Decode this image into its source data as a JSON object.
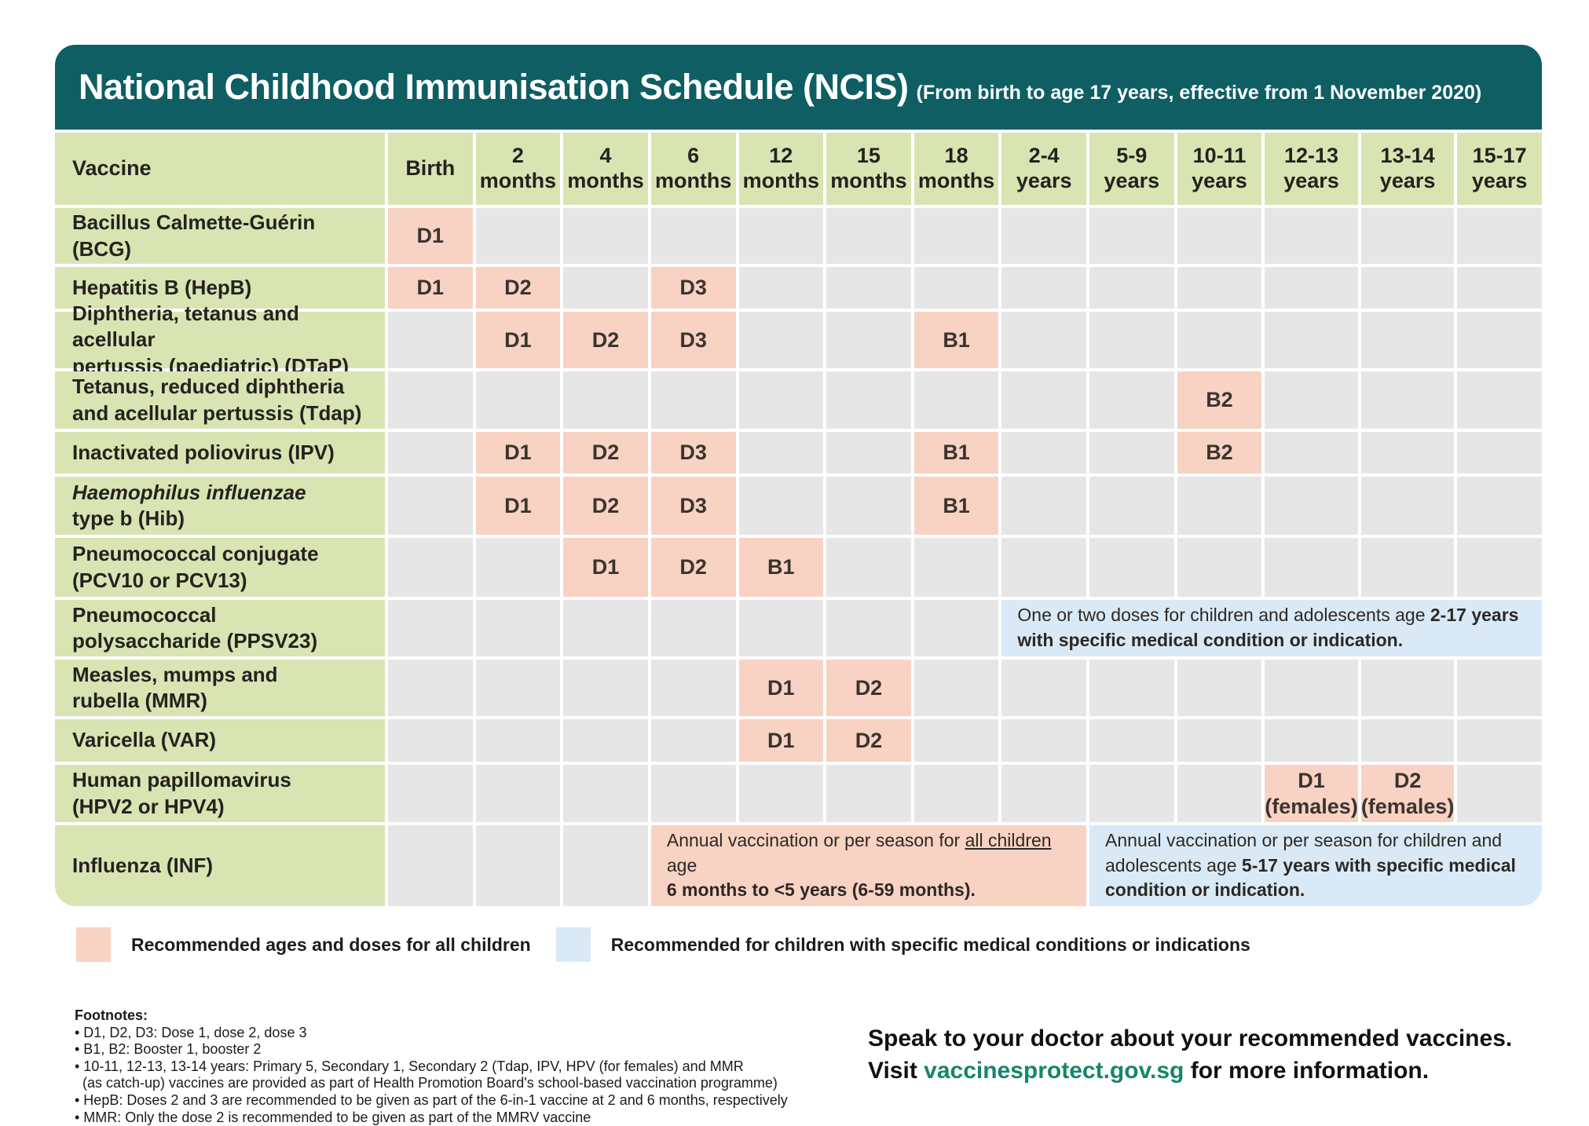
{
  "header": {
    "title": "National Childhood Immunisation Schedule (NCIS)",
    "subtitle": "(From birth to age 17 years, effective from 1 November 2020)"
  },
  "colors": {
    "teal": "#0e5e63",
    "green": "#d9e4b3",
    "pink": "#f8d2c3",
    "gray": "#e6e6e6",
    "blue": "#d9eaf6",
    "link": "#148769"
  },
  "table": {
    "columns": [
      "Vaccine",
      "Birth",
      "2\nmonths",
      "4\nmonths",
      "6\nmonths",
      "12\nmonths",
      "15\nmonths",
      "18\nmonths",
      "2-4\nyears",
      "5-9\nyears",
      "10-11\nyears",
      "12-13\nyears",
      "13-14\nyears",
      "15-17\nyears"
    ],
    "rows": [
      {
        "label": [
          {
            "t": "Bacillus Calmette-Guérin\n(BCG)"
          }
        ],
        "cells": [
          {
            "dose": "D1"
          },
          null,
          null,
          null,
          null,
          null,
          null,
          null,
          null,
          null,
          null,
          null,
          null
        ]
      },
      {
        "label": [
          {
            "t": "Hepatitis B (HepB)"
          }
        ],
        "cells": [
          {
            "dose": "D1"
          },
          {
            "dose": "D2"
          },
          null,
          {
            "dose": "D3"
          },
          null,
          null,
          null,
          null,
          null,
          null,
          null,
          null,
          null
        ]
      },
      {
        "label": [
          {
            "t": "Diphtheria, tetanus and acellular\npertussis (paediatric) (DTaP)"
          }
        ],
        "cells": [
          null,
          {
            "dose": "D1"
          },
          {
            "dose": "D2"
          },
          {
            "dose": "D3"
          },
          null,
          null,
          {
            "dose": "B1"
          },
          null,
          null,
          null,
          null,
          null,
          null
        ]
      },
      {
        "label": [
          {
            "t": "Tetanus, reduced diphtheria\nand acellular pertussis (Tdap)"
          }
        ],
        "cells": [
          null,
          null,
          null,
          null,
          null,
          null,
          null,
          null,
          null,
          {
            "dose": "B2"
          },
          null,
          null,
          null
        ]
      },
      {
        "label": [
          {
            "t": "Inactivated poliovirus (IPV)"
          }
        ],
        "cells": [
          null,
          {
            "dose": "D1"
          },
          {
            "dose": "D2"
          },
          {
            "dose": "D3"
          },
          null,
          null,
          {
            "dose": "B1"
          },
          null,
          null,
          {
            "dose": "B2"
          },
          null,
          null,
          null
        ]
      },
      {
        "label": [
          {
            "t": "Haemophilus influenzae",
            "i": 1
          },
          {
            "t": "\ntype b (Hib)"
          }
        ],
        "cells": [
          null,
          {
            "dose": "D1"
          },
          {
            "dose": "D2"
          },
          {
            "dose": "D3"
          },
          null,
          null,
          {
            "dose": "B1"
          },
          null,
          null,
          null,
          null,
          null,
          null
        ]
      },
      {
        "label": [
          {
            "t": "Pneumococcal conjugate\n(PCV10 or PCV13)"
          }
        ],
        "cells": [
          null,
          null,
          {
            "dose": "D1"
          },
          {
            "dose": "D2"
          },
          {
            "dose": "B1"
          },
          null,
          null,
          null,
          null,
          null,
          null,
          null,
          null
        ]
      },
      {
        "label": [
          {
            "t": "Pneumococcal\npolysaccharide (PPSV23)"
          }
        ],
        "cells": [
          null,
          null,
          null,
          null,
          null,
          null,
          null,
          {
            "style": "blue",
            "span": 6,
            "name": "ppsv23-note",
            "segments": [
              {
                "t": "One or two doses for children and adolescents age "
              },
              {
                "t": "2-17 years",
                "b": 1
              },
              {
                "t": "\n"
              },
              {
                "t": "with specific medical condition or indication.",
                "b": 1
              }
            ]
          }
        ]
      },
      {
        "label": [
          {
            "t": "Measles, mumps and\nrubella (MMR)"
          }
        ],
        "cells": [
          null,
          null,
          null,
          null,
          {
            "dose": "D1"
          },
          {
            "dose": "D2"
          },
          null,
          null,
          null,
          null,
          null,
          null,
          null
        ]
      },
      {
        "label": [
          {
            "t": "Varicella (VAR)"
          }
        ],
        "cells": [
          null,
          null,
          null,
          null,
          {
            "dose": "D1"
          },
          {
            "dose": "D2"
          },
          null,
          null,
          null,
          null,
          null,
          null,
          null
        ]
      },
      {
        "label": [
          {
            "t": "Human papillomavirus\n(HPV2 or HPV4)"
          }
        ],
        "cells": [
          null,
          null,
          null,
          null,
          null,
          null,
          null,
          null,
          null,
          null,
          {
            "dose": "D1\n(females)"
          },
          {
            "dose": "D2\n(females)"
          },
          null
        ]
      },
      {
        "label": [
          {
            "t": "Influenza (INF)"
          }
        ],
        "cells": [
          null,
          null,
          null,
          {
            "style": "pink",
            "span": 5,
            "name": "influenza-all-children-note",
            "segments": [
              {
                "t": "Annual vaccination or per season for "
              },
              {
                "t": "all children",
                "u": 1
              },
              {
                "t": " age\n"
              },
              {
                "t": "6 months to <5 years (6-59 months).",
                "b": 1
              }
            ]
          },
          {
            "style": "blue",
            "span": 5,
            "name": "influenza-medical-note",
            "segments": [
              {
                "t": "Annual vaccination or per season for children and\nadolescents age "
              },
              {
                "t": "5-17 years with specific medical\ncondition or indication.",
                "b": 1
              }
            ]
          }
        ]
      }
    ]
  },
  "legend": {
    "items": [
      {
        "color": "pink",
        "label": "Recommended ages and doses for all children"
      },
      {
        "color": "blue",
        "label": "Recommended for children with specific medical conditions or indications"
      }
    ]
  },
  "footnotes": {
    "title": "Footnotes:",
    "items": [
      "• D1, D2, D3: Dose 1, dose 2, dose 3",
      "• B1, B2: Booster 1, booster 2",
      "• 10-11, 12-13, 13-14 years: Primary 5, Secondary 1, Secondary 2 (Tdap, IPV, HPV (for females) and MMR\n  (as catch-up) vaccines are provided as part of Health Promotion Board's school-based vaccination programme)",
      "• HepB: Doses 2 and 3 are recommended to be given as part of the 6-in-1 vaccine at 2 and 6 months, respectively",
      "• MMR: Only the dose 2 is recommended to be given as part of the MMRV vaccine"
    ]
  },
  "cta": {
    "line1": "Speak to your doctor about your recommended vaccines.",
    "line2_prefix": "Visit ",
    "link": "vaccinesprotect.gov.sg",
    "line2_suffix": " for more information."
  }
}
